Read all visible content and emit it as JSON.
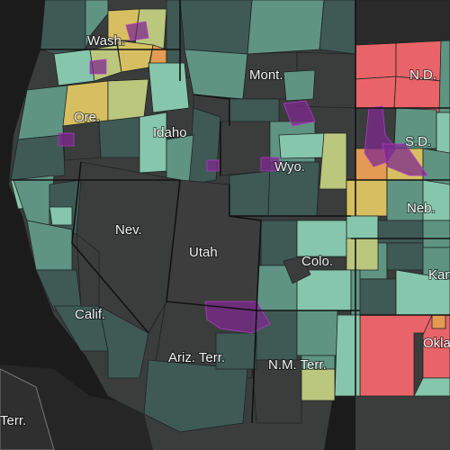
{
  "map": {
    "labels": {
      "wash": "Wash.",
      "ore": "Ore.",
      "idaho": "Idaho",
      "mont": "Mont.",
      "wyo": "Wyo.",
      "nd": "N.D.",
      "sd": "S.D.",
      "neb": "Neb.",
      "kan": "Kan.",
      "nev": "Nev.",
      "utah": "Utah",
      "colo": "Colo.",
      "calif": "Calif.",
      "ariz": "Ariz. Terr.",
      "nm": "N.M. Terr.",
      "okla": "Okla.",
      "terr": "Terr."
    },
    "colors": {
      "background": "#1b1b1b",
      "land_dark": "#3a3d3c",
      "teal_dark": "#3f5a55",
      "teal_mid": "#5f9483",
      "teal_light": "#86c6ad",
      "yellow_green": "#bcc77e",
      "yellow": "#d7bf61",
      "orange": "#e39a52",
      "red": "#e96468",
      "reservation_purple": "#7d2a8e"
    }
  }
}
